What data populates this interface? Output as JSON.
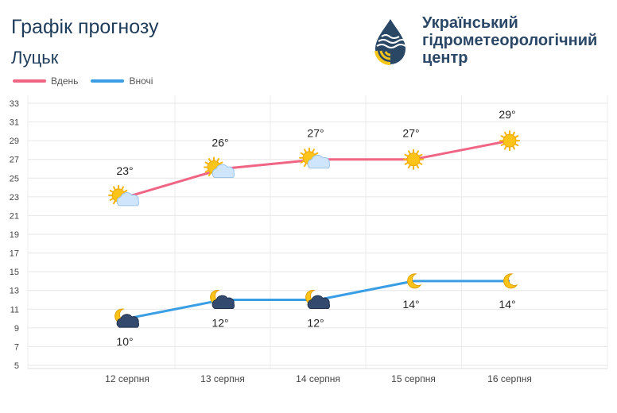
{
  "header": {
    "title": "Графік прогнозу",
    "city": "Луцьк",
    "org_lines": [
      "Український",
      "гідрометеорологічний",
      "центр"
    ]
  },
  "legend": [
    {
      "name": "Вдень",
      "color": "#f06484"
    },
    {
      "name": "Вночі",
      "color": "#3a9ee4"
    }
  ],
  "chart_data": {
    "type": "line",
    "title": "",
    "xlabel": "",
    "ylabel": "",
    "categories": [
      "12 серпня",
      "13 серпня",
      "14 серпня",
      "15 серпня",
      "16 серпня"
    ],
    "ylim": [
      5,
      33
    ],
    "yticks": [
      5,
      7,
      9,
      11,
      13,
      15,
      17,
      19,
      21,
      23,
      25,
      27,
      29,
      31,
      33
    ],
    "grid": true,
    "legend_position": "top-left",
    "series": [
      {
        "name": "Вдень",
        "color": "#f06484",
        "values": [
          23,
          26,
          27,
          27,
          29
        ],
        "labels": [
          "23°",
          "26°",
          "27°",
          "27°",
          "29°"
        ],
        "icons": [
          "sun-cloud",
          "sun-cloud",
          "sun-cloud",
          "sun",
          "sun"
        ]
      },
      {
        "name": "Вночі",
        "color": "#3a9ee4",
        "values": [
          10,
          12,
          12,
          14,
          14
        ],
        "labels": [
          "10°",
          "12°",
          "12°",
          "14°",
          "14°"
        ],
        "icons": [
          "moon-cloud",
          "moon-cloud",
          "moon-cloud",
          "moon",
          "moon"
        ]
      }
    ]
  }
}
